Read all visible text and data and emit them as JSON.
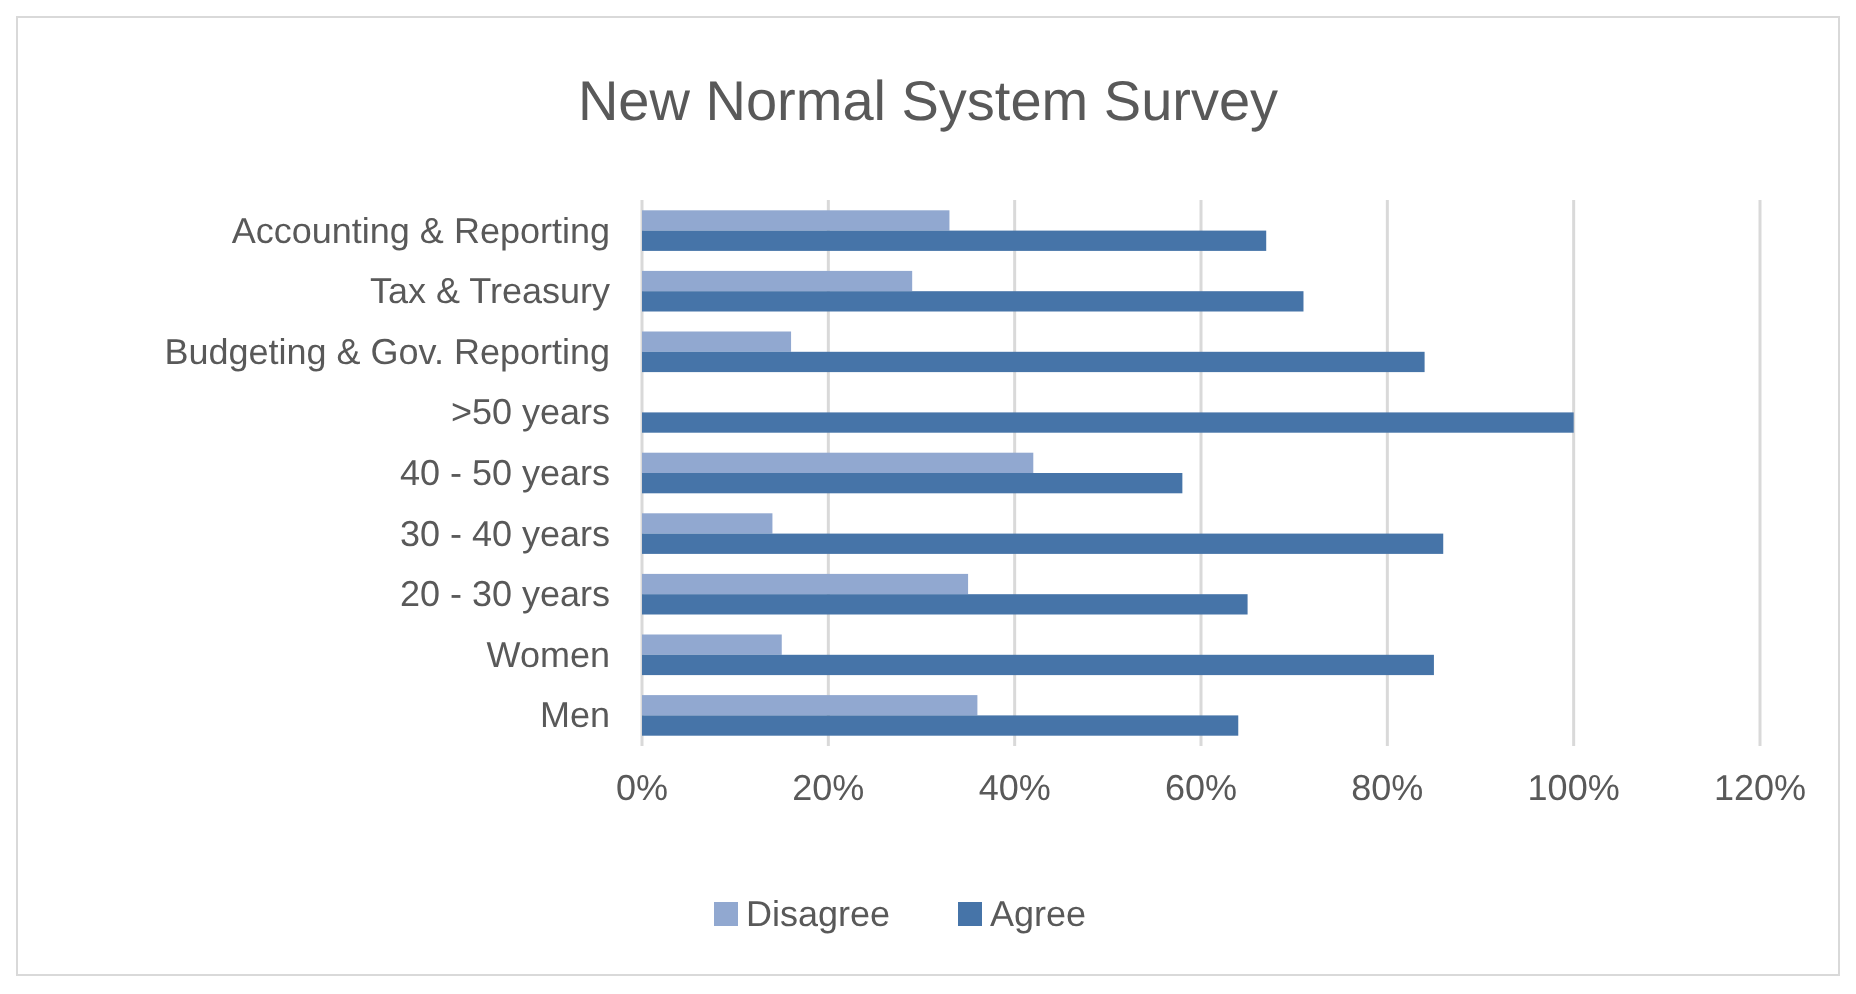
{
  "chart_data": {
    "type": "bar",
    "orientation": "horizontal",
    "title": "New Normal System Survey",
    "categories": [
      "Accounting & Reporting",
      "Tax & Treasury",
      "Budgeting & Gov. Reporting",
      ">50 years",
      "40 - 50 years",
      "30 - 40 years",
      "20 - 30 years",
      "Women",
      "Men"
    ],
    "series": [
      {
        "name": "Disagree",
        "color": "#91a8d0",
        "values": [
          33,
          29,
          16,
          0,
          42,
          14,
          35,
          15,
          36
        ]
      },
      {
        "name": "Agree",
        "color": "#4674a8",
        "values": [
          67,
          71,
          84,
          100,
          58,
          86,
          65,
          85,
          64
        ]
      }
    ],
    "xlim": [
      0,
      120
    ],
    "xticks": [
      {
        "value": 0,
        "label": "0%"
      },
      {
        "value": 20,
        "label": "20%"
      },
      {
        "value": 40,
        "label": "40%"
      },
      {
        "value": 60,
        "label": "60%"
      },
      {
        "value": 80,
        "label": "80%"
      },
      {
        "value": 100,
        "label": "100%"
      },
      {
        "value": 120,
        "label": "120%"
      }
    ],
    "grid": "x",
    "legend": "bottom"
  }
}
